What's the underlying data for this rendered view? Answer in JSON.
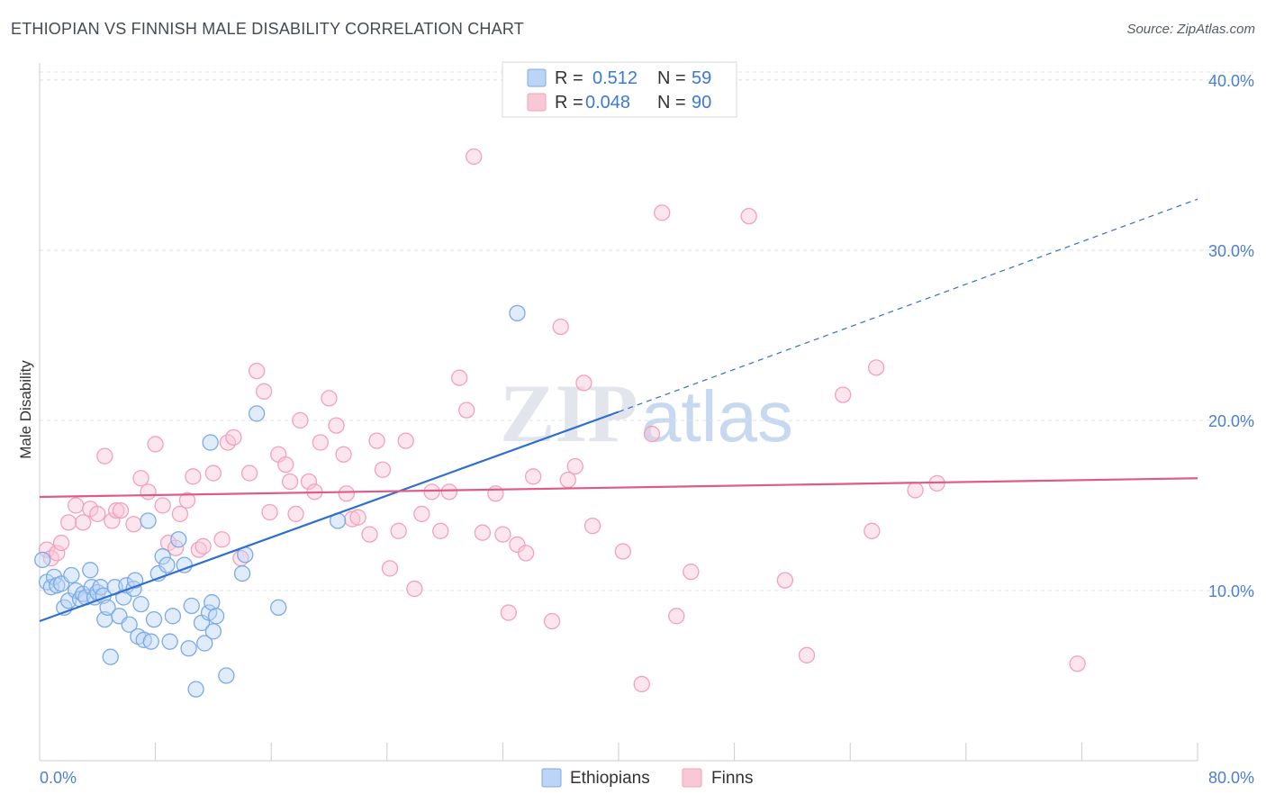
{
  "title": "ETHIOPIAN VS FINNISH MALE DISABILITY CORRELATION CHART",
  "source": "Source: ZipAtlas.com",
  "watermark": {
    "zip": "ZIP",
    "atlas": "atlas"
  },
  "chart_data": {
    "type": "scatter",
    "title": "ETHIOPIAN VS FINNISH MALE DISABILITY CORRELATION CHART",
    "xlabel": "",
    "ylabel": "Male Disability",
    "xlim": [
      0,
      80
    ],
    "ylim": [
      0,
      41
    ],
    "x_tick_labels": [
      "0.0%",
      "80.0%"
    ],
    "y_ticks": [
      10,
      20,
      30,
      40
    ],
    "y_tick_labels": [
      "10.0%",
      "20.0%",
      "30.0%",
      "40.0%"
    ],
    "grid": true,
    "legend_position": "top-center",
    "stats": [
      {
        "r_label": "R = ",
        "r_value": "0.512",
        "n_label": "N = ",
        "n_value": "59"
      },
      {
        "r_label": "R = ",
        "r_value": "0.048",
        "n_label": "N = ",
        "n_value": "90"
      }
    ],
    "series": [
      {
        "name": "Ethiopians",
        "color": "#7aaae8",
        "line_color": "#2f6fd0",
        "trend": {
          "x0": 0,
          "y0": 8.2,
          "x1": 40,
          "y1": 20.5,
          "dash_to_x": 80,
          "dash_to_y": 33
        },
        "points": [
          [
            0.2,
            11.8
          ],
          [
            0.5,
            10.5
          ],
          [
            0.8,
            10.2
          ],
          [
            1.0,
            10.8
          ],
          [
            1.2,
            10.3
          ],
          [
            1.5,
            10.4
          ],
          [
            1.7,
            9.0
          ],
          [
            2.0,
            9.4
          ],
          [
            2.2,
            10.9
          ],
          [
            2.5,
            10.0
          ],
          [
            2.8,
            9.5
          ],
          [
            3.0,
            9.8
          ],
          [
            3.2,
            9.6
          ],
          [
            3.5,
            11.2
          ],
          [
            3.6,
            10.2
          ],
          [
            3.8,
            9.6
          ],
          [
            4.0,
            9.9
          ],
          [
            4.2,
            10.2
          ],
          [
            4.4,
            9.7
          ],
          [
            4.5,
            8.3
          ],
          [
            4.7,
            9.0
          ],
          [
            4.9,
            6.1
          ],
          [
            5.2,
            10.2
          ],
          [
            5.5,
            8.5
          ],
          [
            5.8,
            9.6
          ],
          [
            6.0,
            10.3
          ],
          [
            6.2,
            8.0
          ],
          [
            6.5,
            10.1
          ],
          [
            6.6,
            10.6
          ],
          [
            6.8,
            7.3
          ],
          [
            7.0,
            9.2
          ],
          [
            7.2,
            7.1
          ],
          [
            7.5,
            14.1
          ],
          [
            7.7,
            7.0
          ],
          [
            7.9,
            8.3
          ],
          [
            8.2,
            11.0
          ],
          [
            8.5,
            12.0
          ],
          [
            8.8,
            11.5
          ],
          [
            9.0,
            7.0
          ],
          [
            9.2,
            8.5
          ],
          [
            9.6,
            13.0
          ],
          [
            10.0,
            11.5
          ],
          [
            10.3,
            6.6
          ],
          [
            10.5,
            9.1
          ],
          [
            10.8,
            4.2
          ],
          [
            11.2,
            8.1
          ],
          [
            11.4,
            6.9
          ],
          [
            11.7,
            8.7
          ],
          [
            11.9,
            9.3
          ],
          [
            12.0,
            7.6
          ],
          [
            11.8,
            18.7
          ],
          [
            12.2,
            8.5
          ],
          [
            12.9,
            5.0
          ],
          [
            14.0,
            11.0
          ],
          [
            14.2,
            12.1
          ],
          [
            15.0,
            20.4
          ],
          [
            16.5,
            9.0
          ],
          [
            20.6,
            14.1
          ],
          [
            33.0,
            26.3
          ]
        ]
      },
      {
        "name": "Finns",
        "color": "#f4a0bb",
        "line_color": "#e05a88",
        "trend": {
          "x0": 0,
          "y0": 15.5,
          "x1": 80,
          "y1": 16.6
        },
        "points": [
          [
            0.5,
            12.4
          ],
          [
            0.8,
            11.9
          ],
          [
            1.2,
            12.2
          ],
          [
            1.5,
            12.8
          ],
          [
            2.0,
            14.0
          ],
          [
            2.5,
            15.0
          ],
          [
            3.0,
            14.0
          ],
          [
            3.5,
            14.8
          ],
          [
            4.0,
            14.5
          ],
          [
            4.5,
            17.9
          ],
          [
            5.0,
            14.1
          ],
          [
            5.3,
            14.7
          ],
          [
            5.6,
            14.7
          ],
          [
            6.5,
            13.9
          ],
          [
            7.0,
            16.6
          ],
          [
            7.5,
            15.8
          ],
          [
            8.0,
            18.6
          ],
          [
            8.5,
            15.0
          ],
          [
            8.9,
            12.8
          ],
          [
            9.4,
            12.5
          ],
          [
            9.7,
            14.5
          ],
          [
            10.2,
            15.3
          ],
          [
            10.6,
            16.7
          ],
          [
            11.0,
            12.4
          ],
          [
            11.3,
            12.6
          ],
          [
            12.0,
            16.9
          ],
          [
            12.6,
            13.0
          ],
          [
            13.0,
            18.7
          ],
          [
            13.4,
            19.0
          ],
          [
            13.9,
            11.9
          ],
          [
            14.5,
            16.9
          ],
          [
            15.0,
            22.9
          ],
          [
            15.5,
            21.7
          ],
          [
            15.9,
            14.6
          ],
          [
            16.5,
            18.0
          ],
          [
            17.0,
            17.4
          ],
          [
            17.3,
            16.4
          ],
          [
            17.7,
            14.5
          ],
          [
            18.0,
            20.0
          ],
          [
            18.6,
            16.4
          ],
          [
            19.0,
            15.8
          ],
          [
            19.4,
            18.7
          ],
          [
            20.0,
            21.3
          ],
          [
            20.5,
            19.7
          ],
          [
            21.0,
            18.0
          ],
          [
            21.2,
            15.7
          ],
          [
            21.6,
            14.2
          ],
          [
            22.0,
            14.3
          ],
          [
            22.8,
            13.3
          ],
          [
            23.3,
            18.8
          ],
          [
            23.7,
            17.1
          ],
          [
            24.2,
            11.3
          ],
          [
            24.8,
            13.5
          ],
          [
            25.3,
            18.8
          ],
          [
            25.9,
            10.1
          ],
          [
            26.4,
            14.5
          ],
          [
            27.1,
            15.8
          ],
          [
            27.7,
            13.5
          ],
          [
            28.3,
            15.8
          ],
          [
            29.0,
            22.5
          ],
          [
            29.5,
            20.6
          ],
          [
            30.0,
            35.5
          ],
          [
            30.6,
            13.4
          ],
          [
            31.5,
            15.7
          ],
          [
            32.0,
            13.3
          ],
          [
            32.4,
            8.7
          ],
          [
            33.0,
            12.7
          ],
          [
            33.6,
            12.2
          ],
          [
            34.1,
            16.7
          ],
          [
            35.4,
            8.2
          ],
          [
            36.0,
            25.5
          ],
          [
            36.5,
            16.5
          ],
          [
            37.0,
            17.3
          ],
          [
            37.6,
            22.2
          ],
          [
            38.2,
            13.8
          ],
          [
            40.3,
            12.3
          ],
          [
            41.6,
            4.5
          ],
          [
            42.3,
            19.2
          ],
          [
            43.0,
            32.2
          ],
          [
            44.0,
            8.5
          ],
          [
            45.0,
            11.1
          ],
          [
            49.0,
            32.0
          ],
          [
            51.5,
            10.6
          ],
          [
            53.0,
            6.2
          ],
          [
            55.5,
            21.5
          ],
          [
            57.5,
            13.5
          ],
          [
            57.8,
            23.1
          ],
          [
            60.5,
            15.9
          ],
          [
            71.7,
            5.7
          ],
          [
            62.0,
            16.3
          ]
        ]
      }
    ]
  }
}
